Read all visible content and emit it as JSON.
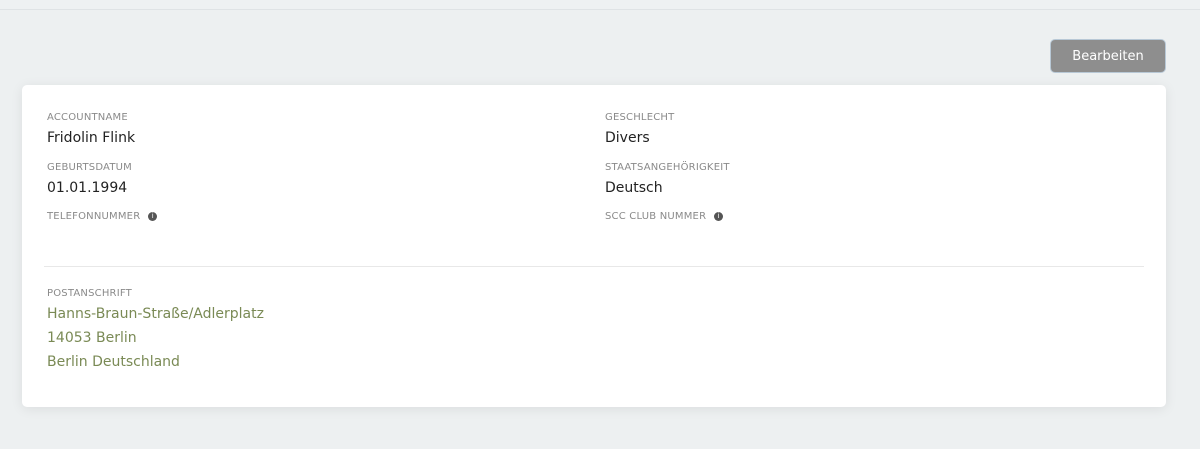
{
  "button": {
    "edit": "Bearbeiten"
  },
  "fields": {
    "accountname": {
      "label": "ACCOUNTNAME",
      "value": "Fridolin Flink"
    },
    "geburtsdatum": {
      "label": "GEBURTSDATUM",
      "value": "01.01.1994"
    },
    "telefon": {
      "label": "TELEFONNUMMER"
    },
    "geschlecht": {
      "label": "GESCHLECHT",
      "value": "Divers"
    },
    "staat": {
      "label": "STAATSANGEHÖRIGKEIT",
      "value": "Deutsch"
    },
    "scc": {
      "label": "SCC CLUB NUMMER"
    }
  },
  "address": {
    "label": "POSTANSCHRIFT",
    "lines": [
      "Hanns-Braun-Straße/Adlerplatz",
      "14053 Berlin",
      "Berlin Deutschland"
    ]
  },
  "colors": {
    "address": "#7a8a55",
    "button": "#8e8e8e"
  }
}
